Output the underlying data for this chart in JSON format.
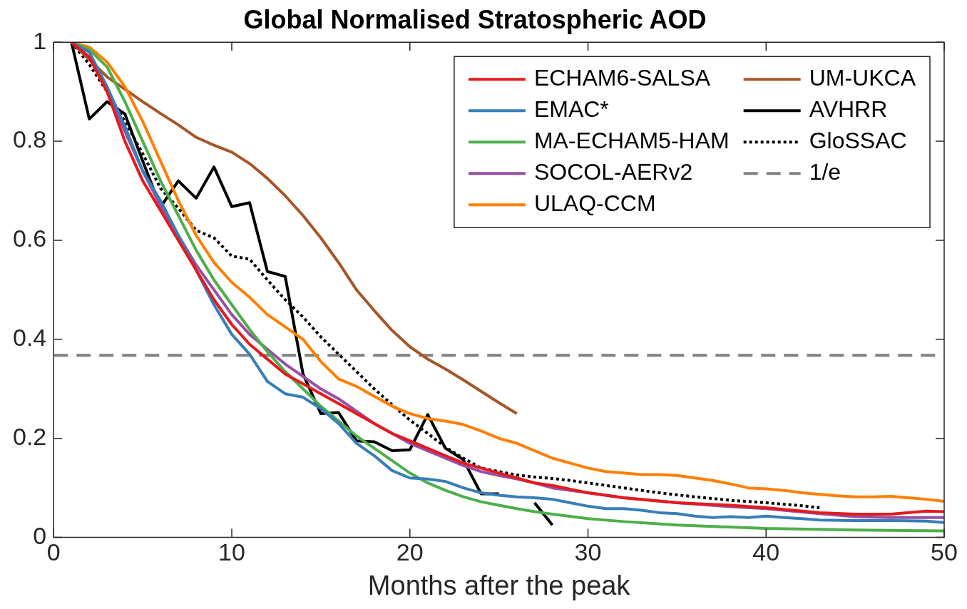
{
  "chart_data": {
    "type": "line",
    "title": "Global Normalised Stratospheric AOD",
    "xlabel": "Months after the peak",
    "xlim": [
      0,
      50
    ],
    "xticks": [
      0,
      10,
      20,
      30,
      40,
      50
    ],
    "ylim": [
      0,
      1
    ],
    "yticks": [
      0,
      0.2,
      0.4,
      0.6,
      0.8,
      1
    ],
    "grid": false,
    "legend": "top right",
    "marker": "none",
    "series": [
      {
        "name": "ECHAM6-SALSA",
        "color": "#e41a1c",
        "line_style": "solid",
        "x": [
          1,
          2,
          3,
          4,
          5,
          6,
          7,
          8,
          9,
          10,
          11,
          12,
          13,
          14,
          15,
          16,
          17,
          18,
          19,
          20,
          21,
          22,
          23,
          24,
          25,
          26,
          27,
          28,
          30,
          32,
          35,
          38,
          40,
          43,
          45,
          47,
          49,
          50
        ],
        "values": [
          1,
          0.97,
          0.9,
          0.8,
          0.72,
          0.66,
          0.6,
          0.54,
          0.48,
          0.43,
          0.39,
          0.36,
          0.33,
          0.31,
          0.29,
          0.27,
          0.25,
          0.23,
          0.21,
          0.195,
          0.18,
          0.165,
          0.15,
          0.14,
          0.13,
          0.12,
          0.11,
          0.105,
          0.09,
          0.08,
          0.07,
          0.065,
          0.06,
          0.05,
          0.047,
          0.047,
          0.053,
          0.052
        ]
      },
      {
        "name": "EMAC*",
        "color": "#377eb8",
        "line_style": "solid",
        "x": [
          1,
          2,
          3,
          4,
          5,
          6,
          7,
          8,
          9,
          10,
          11,
          12,
          13,
          14,
          15,
          16,
          17,
          18,
          19,
          20,
          21,
          22,
          23,
          24,
          25,
          26,
          27,
          28,
          29,
          30,
          31,
          32,
          33,
          34,
          35,
          36,
          37,
          38,
          39,
          40,
          41,
          42,
          43,
          45,
          47,
          49,
          50
        ],
        "values": [
          1,
          0.98,
          0.91,
          0.83,
          0.74,
          0.68,
          0.61,
          0.54,
          0.47,
          0.41,
          0.37,
          0.315,
          0.29,
          0.283,
          0.26,
          0.23,
          0.19,
          0.165,
          0.135,
          0.12,
          0.118,
          0.113,
          0.1,
          0.09,
          0.085,
          0.082,
          0.08,
          0.077,
          0.07,
          0.063,
          0.058,
          0.058,
          0.055,
          0.05,
          0.048,
          0.043,
          0.04,
          0.042,
          0.04,
          0.043,
          0.04,
          0.038,
          0.035,
          0.034,
          0.034,
          0.033,
          0.03
        ]
      },
      {
        "name": "MA-ECHAM5-HAM",
        "color": "#4daf4a",
        "line_style": "solid",
        "x": [
          1,
          2,
          3,
          4,
          5,
          6,
          7,
          8,
          9,
          10,
          11,
          12,
          13,
          14,
          15,
          16,
          17,
          18,
          19,
          20,
          21,
          22,
          23,
          24,
          25,
          26,
          27,
          28,
          30,
          32,
          35,
          40,
          45,
          50
        ],
        "values": [
          1,
          0.985,
          0.95,
          0.88,
          0.8,
          0.72,
          0.65,
          0.58,
          0.52,
          0.47,
          0.42,
          0.375,
          0.335,
          0.3,
          0.265,
          0.235,
          0.205,
          0.18,
          0.155,
          0.13,
          0.11,
          0.095,
          0.082,
          0.072,
          0.065,
          0.058,
          0.052,
          0.047,
          0.038,
          0.032,
          0.025,
          0.018,
          0.015,
          0.013
        ]
      },
      {
        "name": "SOCOL-AERv2",
        "color": "#984ea3",
        "line_style": "solid",
        "x": [
          1,
          2,
          3,
          4,
          5,
          6,
          7,
          8,
          9,
          10,
          11,
          12,
          13,
          14,
          15,
          16,
          17,
          18,
          19,
          20,
          21,
          22,
          23,
          24,
          25,
          26,
          27,
          28,
          30,
          32,
          35,
          38,
          40,
          43,
          45,
          47,
          50
        ],
        "values": [
          1,
          0.97,
          0.9,
          0.82,
          0.74,
          0.67,
          0.61,
          0.55,
          0.5,
          0.45,
          0.41,
          0.38,
          0.35,
          0.325,
          0.3,
          0.28,
          0.255,
          0.23,
          0.21,
          0.19,
          0.175,
          0.16,
          0.145,
          0.133,
          0.125,
          0.118,
          0.11,
          0.1,
          0.09,
          0.08,
          0.07,
          0.062,
          0.058,
          0.048,
          0.042,
          0.04,
          0.04
        ]
      },
      {
        "name": "ULAQ-CCM",
        "color": "#ff7f00",
        "line_style": "solid",
        "x": [
          1,
          2,
          3,
          4,
          5,
          6,
          7,
          8,
          9,
          10,
          11,
          12,
          13,
          14,
          15,
          16,
          17,
          18,
          19,
          20,
          21,
          22,
          23,
          24,
          25,
          26,
          27,
          28,
          29,
          30,
          31,
          32,
          33,
          34,
          35,
          36,
          37,
          38,
          39,
          40,
          41,
          42,
          43,
          44,
          45,
          46,
          47,
          48,
          49,
          50
        ],
        "values": [
          1,
          0.99,
          0.96,
          0.91,
          0.84,
          0.76,
          0.68,
          0.61,
          0.555,
          0.515,
          0.485,
          0.45,
          0.425,
          0.4,
          0.355,
          0.32,
          0.305,
          0.285,
          0.265,
          0.25,
          0.24,
          0.235,
          0.228,
          0.215,
          0.2,
          0.19,
          0.175,
          0.16,
          0.15,
          0.14,
          0.133,
          0.13,
          0.127,
          0.127,
          0.125,
          0.12,
          0.115,
          0.108,
          0.1,
          0.098,
          0.095,
          0.09,
          0.087,
          0.084,
          0.082,
          0.082,
          0.083,
          0.08,
          0.077,
          0.073
        ]
      },
      {
        "name": "UM-UKCA",
        "color": "#a65628",
        "line_style": "solid",
        "x": [
          1,
          2,
          3,
          4,
          5,
          6,
          7,
          8,
          9,
          10,
          11,
          12,
          13,
          14,
          15,
          16,
          17,
          18,
          19,
          20,
          21,
          22,
          23,
          24,
          25,
          26
        ],
        "values": [
          1,
          0.965,
          0.93,
          0.905,
          0.88,
          0.856,
          0.833,
          0.808,
          0.792,
          0.778,
          0.755,
          0.725,
          0.69,
          0.65,
          0.605,
          0.555,
          0.5,
          0.458,
          0.418,
          0.385,
          0.36,
          0.34,
          0.318,
          0.295,
          0.272,
          0.25
        ]
      },
      {
        "name": "AVHRR",
        "color": "#000000",
        "line_style": "solid",
        "x": [
          1,
          2,
          3,
          4,
          5,
          6,
          7,
          8,
          9,
          10,
          11,
          12,
          13,
          14,
          15,
          16,
          17,
          18,
          19,
          20,
          21,
          22,
          23,
          24,
          25,
          26,
          27,
          28
        ],
        "values": [
          1,
          0.845,
          0.88,
          0.855,
          0.76,
          0.667,
          0.72,
          0.685,
          0.748,
          0.668,
          0.676,
          0.537,
          0.527,
          0.33,
          0.25,
          0.252,
          0.195,
          0.193,
          0.175,
          0.177,
          0.248,
          0.18,
          0.157,
          0.088,
          0.088,
          null,
          0.07,
          0.025
        ]
      },
      {
        "name": "GloSSAC",
        "color": "#000000",
        "line_style": "dotted",
        "x": [
          1,
          2,
          3,
          4,
          5,
          6,
          7,
          8,
          9,
          10,
          11,
          12,
          13,
          14,
          15,
          16,
          17,
          18,
          19,
          20,
          21,
          22,
          23,
          24,
          25,
          26,
          27,
          28,
          29,
          30,
          32,
          34,
          36,
          38,
          40,
          42,
          43
        ],
        "values": [
          1,
          0.955,
          0.9,
          0.84,
          0.775,
          0.705,
          0.665,
          0.62,
          0.605,
          0.568,
          0.562,
          0.52,
          0.48,
          0.445,
          0.405,
          0.37,
          0.335,
          0.3,
          0.268,
          0.237,
          0.21,
          0.182,
          0.16,
          0.14,
          0.133,
          0.126,
          0.122,
          0.119,
          0.115,
          0.11,
          0.1,
          0.09,
          0.082,
          0.075,
          0.07,
          0.064,
          0.06
        ]
      }
    ],
    "ref_lines": [
      {
        "axis": "y",
        "value": 0.3679,
        "label": "1/e",
        "color": "#808080",
        "line_style": "dashed"
      }
    ]
  }
}
